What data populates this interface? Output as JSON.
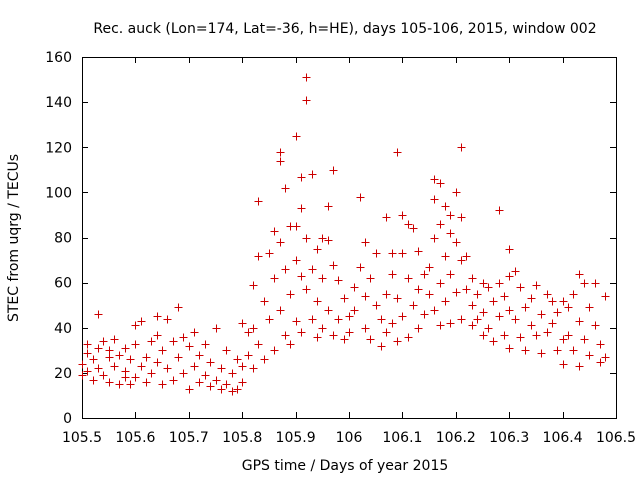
{
  "chart_data": {
    "type": "scatter",
    "title": "Rec. auck (Lon=174, Lat=-36, h=HE), days 105-106, 2015, window 002",
    "xlabel": "GPS time / Days of year 2015",
    "ylabel": "STEC from uqrg / TECUs",
    "xlim": [
      105.5,
      106.5
    ],
    "ylim": [
      0,
      160
    ],
    "x_ticks": [
      105.5,
      105.6,
      105.7,
      105.8,
      105.9,
      106,
      106.1,
      106.2,
      106.3,
      106.4,
      106.5
    ],
    "x_tick_labels": [
      "105.5",
      "105.6",
      "105.7",
      "105.8",
      "105.9",
      "106",
      "106.1",
      "106.2",
      "106.3",
      "106.4",
      "106.5"
    ],
    "y_ticks": [
      0,
      20,
      40,
      60,
      80,
      100,
      120,
      140,
      160
    ],
    "y_tick_labels": [
      "0",
      "20",
      "40",
      "60",
      "80",
      "100",
      "120",
      "140",
      "160"
    ],
    "marker": "+",
    "color": "#cc0000",
    "grid": false,
    "series": [
      {
        "name": "STEC",
        "points": [
          [
            105.5,
            19
          ],
          [
            105.5,
            24
          ],
          [
            105.51,
            33
          ],
          [
            105.51,
            29
          ],
          [
            105.51,
            21
          ],
          [
            105.52,
            26
          ],
          [
            105.52,
            17
          ],
          [
            105.53,
            46
          ],
          [
            105.53,
            31
          ],
          [
            105.53,
            22
          ],
          [
            105.54,
            19
          ],
          [
            105.54,
            34
          ],
          [
            105.55,
            27
          ],
          [
            105.55,
            16
          ],
          [
            105.55,
            30
          ],
          [
            105.56,
            23
          ],
          [
            105.56,
            35
          ],
          [
            105.57,
            15
          ],
          [
            105.57,
            28
          ],
          [
            105.58,
            18
          ],
          [
            105.58,
            31
          ],
          [
            105.58,
            21
          ],
          [
            105.59,
            15
          ],
          [
            105.59,
            26
          ],
          [
            105.6,
            41
          ],
          [
            105.6,
            33
          ],
          [
            105.6,
            18
          ],
          [
            105.61,
            43
          ],
          [
            105.61,
            23
          ],
          [
            105.62,
            16
          ],
          [
            105.62,
            27
          ],
          [
            105.63,
            34
          ],
          [
            105.63,
            20
          ],
          [
            105.64,
            45
          ],
          [
            105.64,
            37
          ],
          [
            105.64,
            25
          ],
          [
            105.65,
            15
          ],
          [
            105.65,
            30
          ],
          [
            105.66,
            44
          ],
          [
            105.66,
            22
          ],
          [
            105.67,
            17
          ],
          [
            105.67,
            34
          ],
          [
            105.68,
            49
          ],
          [
            105.68,
            27
          ],
          [
            105.69,
            36
          ],
          [
            105.69,
            20
          ],
          [
            105.7,
            13
          ],
          [
            105.7,
            32
          ],
          [
            105.71,
            38
          ],
          [
            105.71,
            23
          ],
          [
            105.72,
            16
          ],
          [
            105.72,
            28
          ],
          [
            105.73,
            33
          ],
          [
            105.73,
            19
          ],
          [
            105.74,
            14
          ],
          [
            105.74,
            25
          ],
          [
            105.75,
            40
          ],
          [
            105.75,
            17
          ],
          [
            105.76,
            13
          ],
          [
            105.76,
            22
          ],
          [
            105.77,
            30
          ],
          [
            105.77,
            15
          ],
          [
            105.78,
            12
          ],
          [
            105.78,
            20
          ],
          [
            105.79,
            26
          ],
          [
            105.79,
            13
          ],
          [
            105.8,
            42
          ],
          [
            105.8,
            23
          ],
          [
            105.8,
            16
          ],
          [
            105.81,
            38
          ],
          [
            105.81,
            28
          ],
          [
            105.82,
            59
          ],
          [
            105.82,
            40
          ],
          [
            105.82,
            22
          ],
          [
            105.83,
            72
          ],
          [
            105.83,
            96
          ],
          [
            105.83,
            33
          ],
          [
            105.84,
            52
          ],
          [
            105.84,
            26
          ],
          [
            105.85,
            73
          ],
          [
            105.85,
            44
          ],
          [
            105.86,
            83
          ],
          [
            105.86,
            62
          ],
          [
            105.86,
            30
          ],
          [
            105.87,
            118
          ],
          [
            105.87,
            114
          ],
          [
            105.87,
            78
          ],
          [
            105.87,
            48
          ],
          [
            105.88,
            102
          ],
          [
            105.88,
            66
          ],
          [
            105.88,
            37
          ],
          [
            105.89,
            85
          ],
          [
            105.89,
            55
          ],
          [
            105.89,
            33
          ],
          [
            105.9,
            125
          ],
          [
            105.9,
            85
          ],
          [
            105.9,
            70
          ],
          [
            105.9,
            43
          ],
          [
            105.91,
            107
          ],
          [
            105.91,
            93
          ],
          [
            105.91,
            63
          ],
          [
            105.91,
            38
          ],
          [
            105.92,
            151
          ],
          [
            105.92,
            141
          ],
          [
            105.92,
            80
          ],
          [
            105.92,
            57
          ],
          [
            105.93,
            108
          ],
          [
            105.93,
            66
          ],
          [
            105.93,
            44
          ],
          [
            105.94,
            75
          ],
          [
            105.94,
            52
          ],
          [
            105.94,
            36
          ],
          [
            105.95,
            80
          ],
          [
            105.95,
            62
          ],
          [
            105.95,
            40
          ],
          [
            105.96,
            94
          ],
          [
            105.96,
            79
          ],
          [
            105.96,
            48
          ],
          [
            105.97,
            110
          ],
          [
            105.97,
            68
          ],
          [
            105.97,
            37
          ],
          [
            105.98,
            61
          ],
          [
            105.98,
            44
          ],
          [
            105.99,
            53
          ],
          [
            105.99,
            35
          ],
          [
            106.0,
            45
          ],
          [
            106.0,
            38
          ],
          [
            106.01,
            58
          ],
          [
            106.01,
            48
          ],
          [
            106.02,
            98
          ],
          [
            106.02,
            67
          ],
          [
            106.03,
            78
          ],
          [
            106.03,
            54
          ],
          [
            106.03,
            40
          ],
          [
            106.04,
            62
          ],
          [
            106.04,
            35
          ],
          [
            106.05,
            73
          ],
          [
            106.05,
            50
          ],
          [
            106.06,
            44
          ],
          [
            106.06,
            32
          ],
          [
            106.07,
            89
          ],
          [
            106.07,
            55
          ],
          [
            106.07,
            38
          ],
          [
            106.08,
            73
          ],
          [
            106.08,
            64
          ],
          [
            106.08,
            42
          ],
          [
            106.09,
            118
          ],
          [
            106.09,
            53
          ],
          [
            106.09,
            34
          ],
          [
            106.1,
            90
          ],
          [
            106.1,
            73
          ],
          [
            106.1,
            45
          ],
          [
            106.11,
            86
          ],
          [
            106.11,
            62
          ],
          [
            106.11,
            36
          ],
          [
            106.12,
            84
          ],
          [
            106.12,
            50
          ],
          [
            106.13,
            74
          ],
          [
            106.13,
            57
          ],
          [
            106.13,
            40
          ],
          [
            106.14,
            64
          ],
          [
            106.14,
            46
          ],
          [
            106.15,
            67
          ],
          [
            106.15,
            55
          ],
          [
            106.16,
            106
          ],
          [
            106.16,
            97
          ],
          [
            106.16,
            80
          ],
          [
            106.16,
            48
          ],
          [
            106.17,
            104
          ],
          [
            106.17,
            86
          ],
          [
            106.17,
            60
          ],
          [
            106.17,
            41
          ],
          [
            106.18,
            94
          ],
          [
            106.18,
            72
          ],
          [
            106.18,
            52
          ],
          [
            106.19,
            90
          ],
          [
            106.19,
            82
          ],
          [
            106.19,
            64
          ],
          [
            106.19,
            42
          ],
          [
            106.2,
            100
          ],
          [
            106.2,
            78
          ],
          [
            106.2,
            56
          ],
          [
            106.21,
            120
          ],
          [
            106.21,
            89
          ],
          [
            106.21,
            70
          ],
          [
            106.21,
            44
          ],
          [
            106.22,
            72
          ],
          [
            106.22,
            57
          ],
          [
            106.23,
            62
          ],
          [
            106.23,
            50
          ],
          [
            106.23,
            41
          ],
          [
            106.24,
            55
          ],
          [
            106.24,
            44
          ],
          [
            106.25,
            60
          ],
          [
            106.25,
            47
          ],
          [
            106.25,
            37
          ],
          [
            106.26,
            58
          ],
          [
            106.26,
            40
          ],
          [
            106.27,
            52
          ],
          [
            106.27,
            34
          ],
          [
            106.28,
            92
          ],
          [
            106.28,
            60
          ],
          [
            106.28,
            45
          ],
          [
            106.29,
            54
          ],
          [
            106.29,
            37
          ],
          [
            106.3,
            75
          ],
          [
            106.3,
            63
          ],
          [
            106.3,
            48
          ],
          [
            106.3,
            31
          ],
          [
            106.31,
            65
          ],
          [
            106.31,
            44
          ],
          [
            106.32,
            58
          ],
          [
            106.32,
            36
          ],
          [
            106.33,
            49
          ],
          [
            106.33,
            30
          ],
          [
            106.34,
            53
          ],
          [
            106.34,
            41
          ],
          [
            106.35,
            59
          ],
          [
            106.35,
            37
          ],
          [
            106.36,
            46
          ],
          [
            106.36,
            29
          ],
          [
            106.37,
            55
          ],
          [
            106.37,
            38
          ],
          [
            106.38,
            52
          ],
          [
            106.38,
            42
          ],
          [
            106.39,
            47
          ],
          [
            106.39,
            30
          ],
          [
            106.4,
            52
          ],
          [
            106.4,
            35
          ],
          [
            106.4,
            24
          ],
          [
            106.41,
            49
          ],
          [
            106.41,
            37
          ],
          [
            106.42,
            55
          ],
          [
            106.42,
            30
          ],
          [
            106.43,
            64
          ],
          [
            106.43,
            43
          ],
          [
            106.43,
            23
          ],
          [
            106.44,
            60
          ],
          [
            106.44,
            35
          ],
          [
            106.45,
            49
          ],
          [
            106.45,
            28
          ],
          [
            106.46,
            60
          ],
          [
            106.46,
            41
          ],
          [
            106.47,
            33
          ],
          [
            106.47,
            25
          ],
          [
            106.48,
            54
          ],
          [
            106.48,
            27
          ]
        ]
      }
    ]
  }
}
